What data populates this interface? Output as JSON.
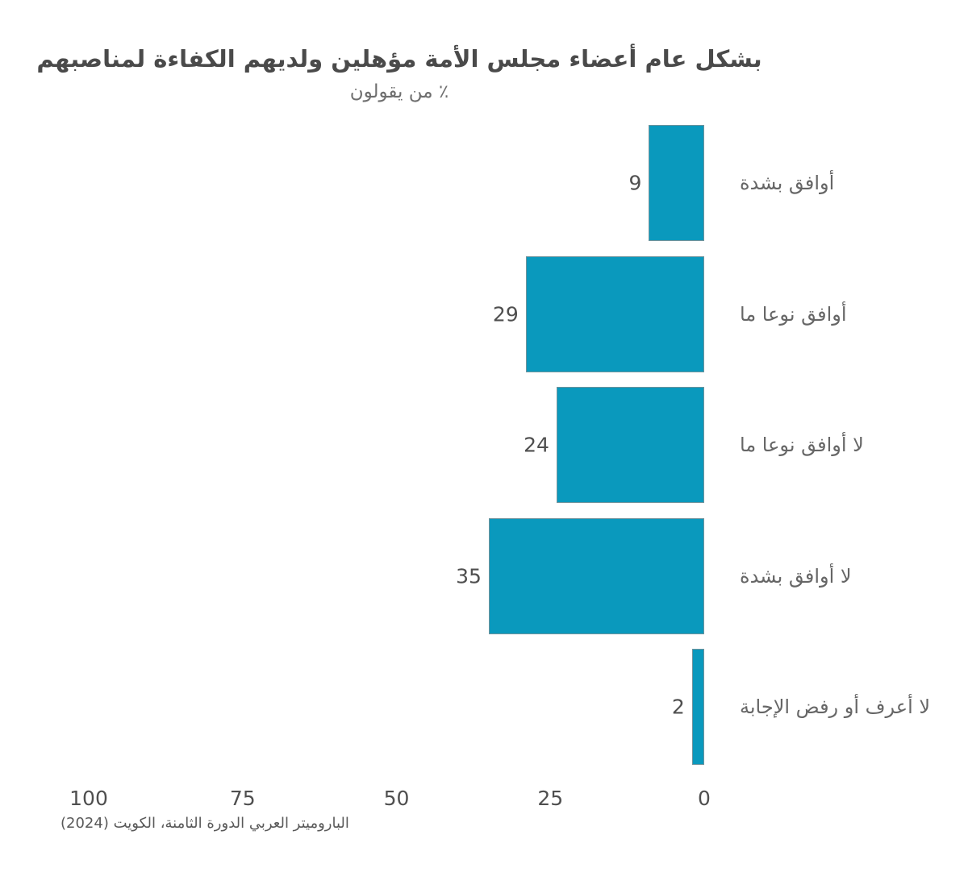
{
  "chart_data": {
    "type": "bar",
    "orientation": "horizontal",
    "direction": "rtl",
    "title": "بشكل عام أعضاء مجلس الأمة مؤهلين ولديهم الكفاءة لمناصبهم",
    "subtitle": "٪ من يقولون",
    "caption": "الباروميتر العربي الدورة الثامنة، الكويت (2024)",
    "categories": [
      "أوافق بشدة",
      "أوافق نوعا ما",
      "لا أوافق نوعا ما",
      "لا أوافق بشدة",
      "لا أعرف أو رفض الإجابة"
    ],
    "values": [
      9,
      29,
      24,
      35,
      2
    ],
    "x_ticks": [
      100,
      75,
      50,
      25,
      0
    ],
    "xlim": [
      0,
      100
    ],
    "grid": false,
    "legend": "none",
    "bar_color": "#0a99bd",
    "value_axis_side": "bottom",
    "category_axis_side": "right"
  }
}
